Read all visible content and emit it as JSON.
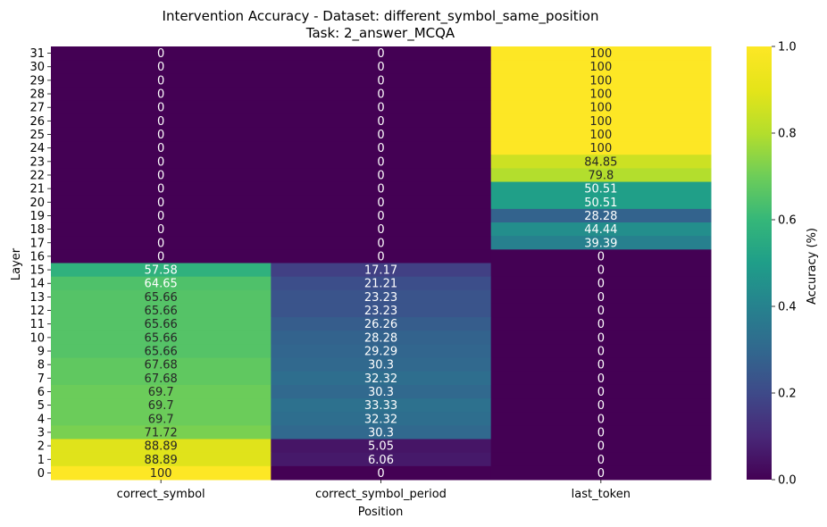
{
  "chart_data": {
    "type": "heatmap",
    "title": "Intervention Accuracy - Dataset: different_symbol_same_position",
    "subtitle": "Task: 2_answer_MCQA",
    "xlabel": "Position",
    "ylabel": "Layer",
    "colorbar_label": "Accuracy (%)",
    "colormap": "viridis",
    "color_range": [
      0.0,
      1.0
    ],
    "colorbar_ticks": [
      "0.0",
      "0.2",
      "0.4",
      "0.6",
      "0.8",
      "1.0"
    ],
    "columns": [
      "correct_symbol",
      "correct_symbol_period",
      "last_token"
    ],
    "rows": [
      "31",
      "30",
      "29",
      "28",
      "27",
      "26",
      "25",
      "24",
      "23",
      "22",
      "21",
      "20",
      "19",
      "18",
      "17",
      "16",
      "15",
      "14",
      "13",
      "12",
      "11",
      "10",
      "9",
      "8",
      "7",
      "6",
      "5",
      "4",
      "3",
      "2",
      "1",
      "0"
    ],
    "values": [
      [
        0,
        0,
        100
      ],
      [
        0,
        0,
        100
      ],
      [
        0,
        0,
        100
      ],
      [
        0,
        0,
        100
      ],
      [
        0,
        0,
        100
      ],
      [
        0,
        0,
        100
      ],
      [
        0,
        0,
        100
      ],
      [
        0,
        0,
        100
      ],
      [
        0,
        0,
        84.85
      ],
      [
        0,
        0,
        79.8
      ],
      [
        0,
        0,
        50.51
      ],
      [
        0,
        0,
        50.51
      ],
      [
        0,
        0,
        28.28
      ],
      [
        0,
        0,
        44.44
      ],
      [
        0,
        0,
        39.39
      ],
      [
        0,
        0,
        0
      ],
      [
        57.58,
        17.17,
        0
      ],
      [
        64.65,
        21.21,
        0
      ],
      [
        65.66,
        23.23,
        0
      ],
      [
        65.66,
        23.23,
        0
      ],
      [
        65.66,
        26.26,
        0
      ],
      [
        65.66,
        28.28,
        0
      ],
      [
        65.66,
        29.29,
        0
      ],
      [
        67.68,
        30.3,
        0
      ],
      [
        67.68,
        32.32,
        0
      ],
      [
        69.7,
        30.3,
        0
      ],
      [
        69.7,
        33.33,
        0
      ],
      [
        69.7,
        32.32,
        0
      ],
      [
        71.72,
        30.3,
        0
      ],
      [
        88.89,
        5.05,
        0
      ],
      [
        88.89,
        6.06,
        0
      ],
      [
        100,
        0,
        0
      ]
    ]
  }
}
